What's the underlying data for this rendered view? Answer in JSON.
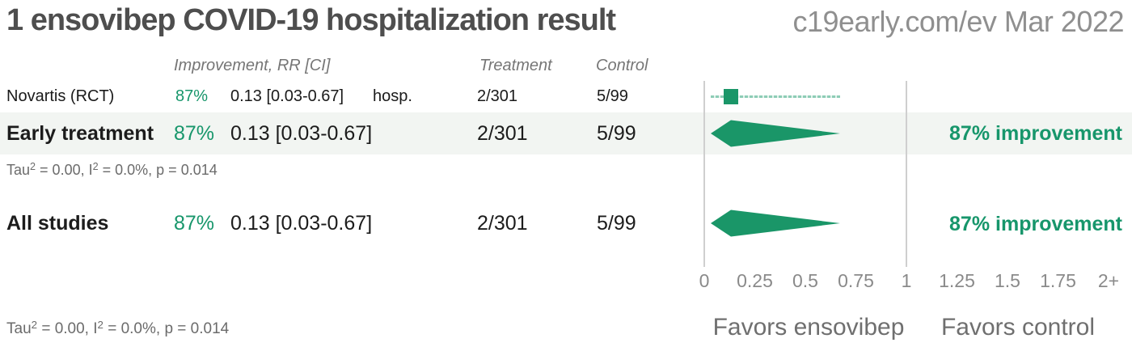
{
  "header": {
    "title": "1 ensovibep COVID-19 hospitalization result",
    "source": "c19early.com/ev Mar 2022"
  },
  "columns": {
    "improvement": "Improvement, RR [CI]",
    "treatment": "Treatment",
    "control": "Control"
  },
  "rows": [
    {
      "label": "Novartis (RCT)",
      "improvement_pct": "87%",
      "rr_ci": "0.13 [0.03-0.67]",
      "outcome": "hosp.",
      "treatment": "2/301",
      "control": "5/99"
    },
    {
      "label": "Early treatment",
      "improvement_pct": "87%",
      "rr_ci": "0.13 [0.03-0.67]",
      "treatment": "2/301",
      "control": "5/99",
      "summary": "87% improvement"
    },
    {
      "label": "All studies",
      "improvement_pct": "87%",
      "rr_ci": "0.13 [0.03-0.67]",
      "treatment": "2/301",
      "control": "5/99",
      "summary": "87% improvement"
    }
  ],
  "heterogeneity": {
    "p1": "Tau",
    "sup1": "2",
    "p2": " = 0.00, I",
    "sup2": "2",
    "p3": " = 0.0%, p = 0.014"
  },
  "colors": {
    "green": "#17966b",
    "marker_green": "#1a9668",
    "band_background": "#f2f5f2",
    "gridline": "#cfcfcf"
  },
  "chart_data": {
    "type": "scatter",
    "subtype": "forest_plot",
    "title": "1 ensovibep COVID-19 hospitalization result",
    "x_axis": {
      "ticks": [
        "0",
        "0.25",
        "0.5",
        "0.75",
        "1",
        "1.25",
        "1.5",
        "1.75",
        "2+"
      ],
      "tick_values": [
        0,
        0.25,
        0.5,
        0.75,
        1,
        1.25,
        1.5,
        1.75,
        2
      ],
      "range": [
        0,
        2.05
      ],
      "reference_lines": [
        0,
        1
      ],
      "grid": false
    },
    "series": [
      {
        "name": "Novartis (RCT)",
        "marker": "square_with_ci",
        "rr": 0.13,
        "ci_low": 0.03,
        "ci_high": 0.67,
        "improvement_pct": 87,
        "outcome": "hosp.",
        "treatment_events": "2/301",
        "control_events": "5/99"
      },
      {
        "name": "Early treatment",
        "marker": "diamond",
        "rr": 0.13,
        "ci_low": 0.03,
        "ci_high": 0.67,
        "improvement_pct": 87,
        "treatment_events": "2/301",
        "control_events": "5/99",
        "tau2": 0.0,
        "i2_pct": 0.0,
        "p": 0.014
      },
      {
        "name": "All studies",
        "marker": "diamond",
        "rr": 0.13,
        "ci_low": 0.03,
        "ci_high": 0.67,
        "improvement_pct": 87,
        "treatment_events": "2/301",
        "control_events": "5/99",
        "tau2": 0.0,
        "i2_pct": 0.0,
        "p": 0.014
      }
    ],
    "favors_left": "Favors ensovibep",
    "favors_right": "Favors control"
  }
}
